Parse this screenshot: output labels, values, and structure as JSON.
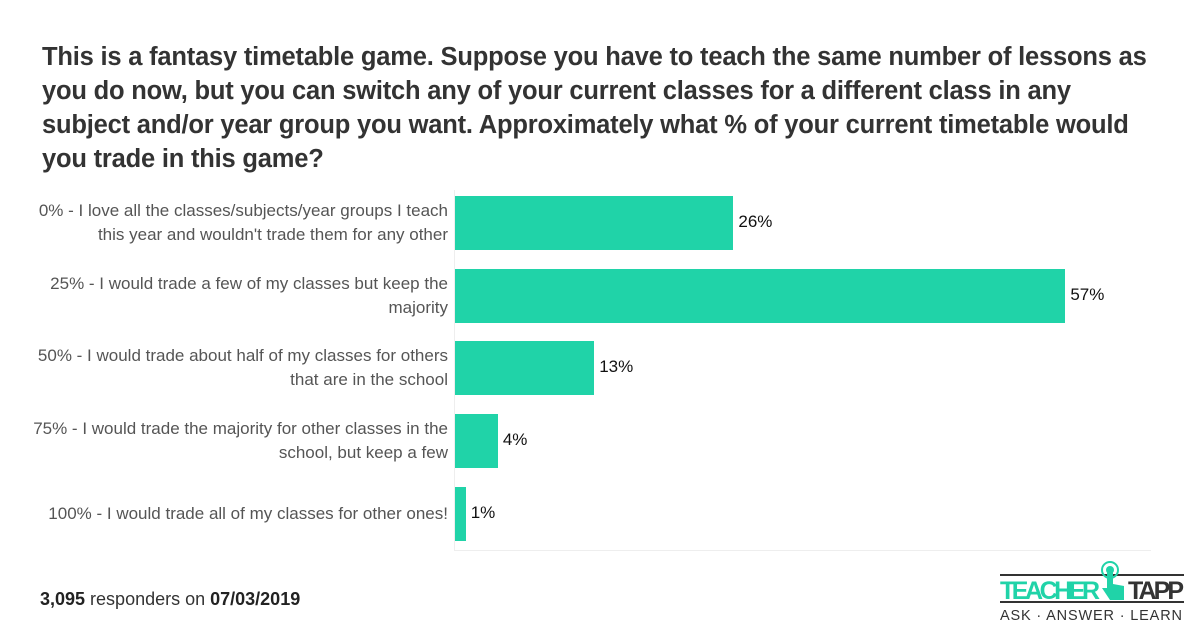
{
  "chart_data": {
    "type": "bar",
    "orientation": "horizontal",
    "title": "This is a fantasy timetable game. Suppose you have to teach the same number of lessons as you do now, but you can switch any of your current classes for a different class in any subject and/or year group you want. Approximately what % of your current timetable would you trade in this game?",
    "categories": [
      "0% - I love all the classes/subjects/year groups I teach this year and wouldn't trade them for any other",
      "25% - I would trade a few of my classes but keep the majority",
      "50% - I would trade about half of my classes for others that are in the school",
      "75% - I would trade the majority for other classes in the school, but keep a few",
      "100% - I would trade all of my classes for other ones!"
    ],
    "values": [
      26,
      57,
      13,
      4,
      1
    ],
    "value_labels": [
      "26%",
      "57%",
      "13%",
      "4%",
      "1%"
    ],
    "xlim": [
      0,
      65
    ],
    "color": "#20d3a8"
  },
  "footer": {
    "count": "3,095",
    "middle": " responders on ",
    "date": "07/03/2019"
  },
  "logo": {
    "top": "TEACHER TAPP",
    "bottom": "ASK · ANSWER · LEARN"
  }
}
